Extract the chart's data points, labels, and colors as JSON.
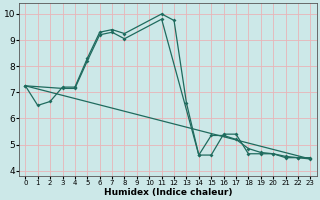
{
  "xlabel": "Humidex (Indice chaleur)",
  "xlim": [
    -0.5,
    23.5
  ],
  "ylim": [
    3.8,
    10.4
  ],
  "xticks": [
    0,
    1,
    2,
    3,
    4,
    5,
    6,
    7,
    8,
    9,
    10,
    11,
    12,
    13,
    14,
    15,
    16,
    17,
    18,
    19,
    20,
    21,
    22,
    23
  ],
  "yticks": [
    4,
    5,
    6,
    7,
    8,
    9,
    10
  ],
  "bg_color": "#cce8e8",
  "line_color": "#1f6b5e",
  "grid_color": "#e8b4b8",
  "line1_x": [
    0,
    1,
    2,
    3,
    4,
    5,
    6,
    7,
    8,
    11,
    12,
    13,
    14,
    15,
    16,
    17,
    18,
    19,
    20,
    21,
    22,
    23
  ],
  "line1_y": [
    7.25,
    6.5,
    6.65,
    7.2,
    7.2,
    8.3,
    9.3,
    9.4,
    9.25,
    10.0,
    9.75,
    6.6,
    4.6,
    4.6,
    5.4,
    5.4,
    4.65,
    4.65,
    4.65,
    4.5,
    4.5,
    4.5
  ],
  "line2_x": [
    0,
    3,
    4,
    5,
    6,
    7,
    8,
    11,
    14,
    15,
    16,
    17,
    18,
    19,
    20,
    21,
    22,
    23
  ],
  "line2_y": [
    7.25,
    7.15,
    7.15,
    8.2,
    9.2,
    9.3,
    9.05,
    9.8,
    4.6,
    5.35,
    5.35,
    5.2,
    4.85,
    4.7,
    4.65,
    4.55,
    4.5,
    4.45
  ]
}
